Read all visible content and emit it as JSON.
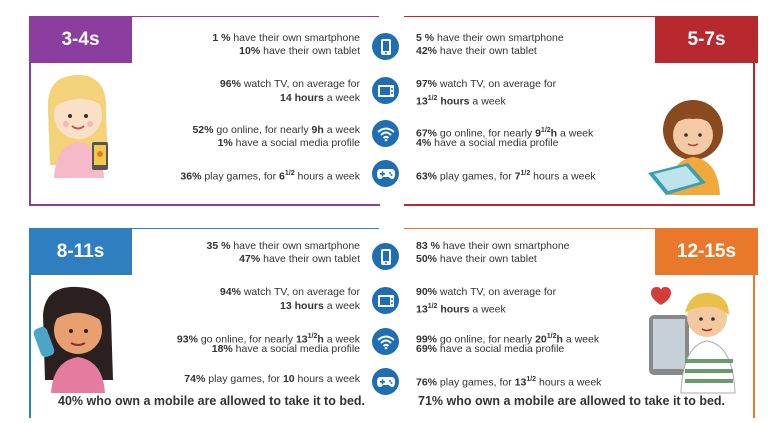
{
  "colors": {
    "purple": "#8b3da0",
    "red": "#b8292f",
    "blue": "#2f7fc0",
    "orange": "#e8792b",
    "icon": "#1f6eb3"
  },
  "panels": {
    "tl": {
      "age": "3-4s",
      "phone": [
        "1 %",
        " have their own smartphone"
      ],
      "tablet": [
        "10%",
        " have their own tablet"
      ],
      "tv1": [
        "96%",
        " watch TV, on average for"
      ],
      "tv2": [
        "14 hours",
        " a week"
      ],
      "online": [
        "52%",
        " go online, for nearly ",
        "9h",
        " a week"
      ],
      "social": [
        "1%",
        " have a social media profile"
      ],
      "games": [
        "36%",
        " play games, for ",
        "6",
        "1/2",
        " hours a week"
      ]
    },
    "tr": {
      "age": "5-7s",
      "phone": [
        "5 %",
        " have their own smartphone"
      ],
      "tablet": [
        "42%",
        " have their own tablet"
      ],
      "tv1": [
        "97%",
        " watch TV, on average for"
      ],
      "tv2": [
        "13",
        "1/2",
        " hours",
        " a week"
      ],
      "online": [
        "67%",
        " go online, for nearly ",
        "9",
        "1/2",
        "h",
        " a week"
      ],
      "social": [
        "4%",
        " have a social media profile"
      ],
      "games": [
        "63%",
        " play games, for ",
        "7",
        "1/2",
        " hours a week"
      ]
    },
    "bl": {
      "age": "8-11s",
      "phone": [
        "35 %",
        " have their own smartphone"
      ],
      "tablet": [
        "47%",
        " have their own tablet"
      ],
      "tv1": [
        "94%",
        " watch TV, on average for"
      ],
      "tv2": [
        "13 hours",
        " a week"
      ],
      "online": [
        "93%",
        " go online, for nearly ",
        "13",
        "1/2",
        "h",
        " a week"
      ],
      "social": [
        "18%",
        " have a social media profile"
      ],
      "games": [
        "74%",
        " play games, for ",
        "10",
        " hours a week"
      ],
      "footer": [
        "40%",
        " who own a mobile are allowed to take it to bed."
      ]
    },
    "br": {
      "age": "12-15s",
      "phone": [
        "83 %",
        " have their own smartphone"
      ],
      "tablet": [
        "50%",
        " have their own tablet"
      ],
      "tv1": [
        "90%",
        " watch TV, on average for"
      ],
      "tv2": [
        "13",
        "1/2",
        " hours",
        " a week"
      ],
      "online": [
        "99%",
        " go online, for nearly ",
        "20",
        "1/2",
        "h",
        " a week"
      ],
      "social": [
        "69%",
        " have a social media profile"
      ],
      "games": [
        "76%",
        " play games, for ",
        "13",
        "1/2",
        " hours a week"
      ],
      "footer": [
        "71%",
        " who own a mobile are allowed to take it to bed."
      ]
    }
  },
  "icons": [
    "smartphone-icon",
    "tv-icon",
    "wifi-icon",
    "gamepad-icon",
    "smartphone-icon",
    "tv-icon",
    "wifi-icon",
    "gamepad-icon"
  ]
}
